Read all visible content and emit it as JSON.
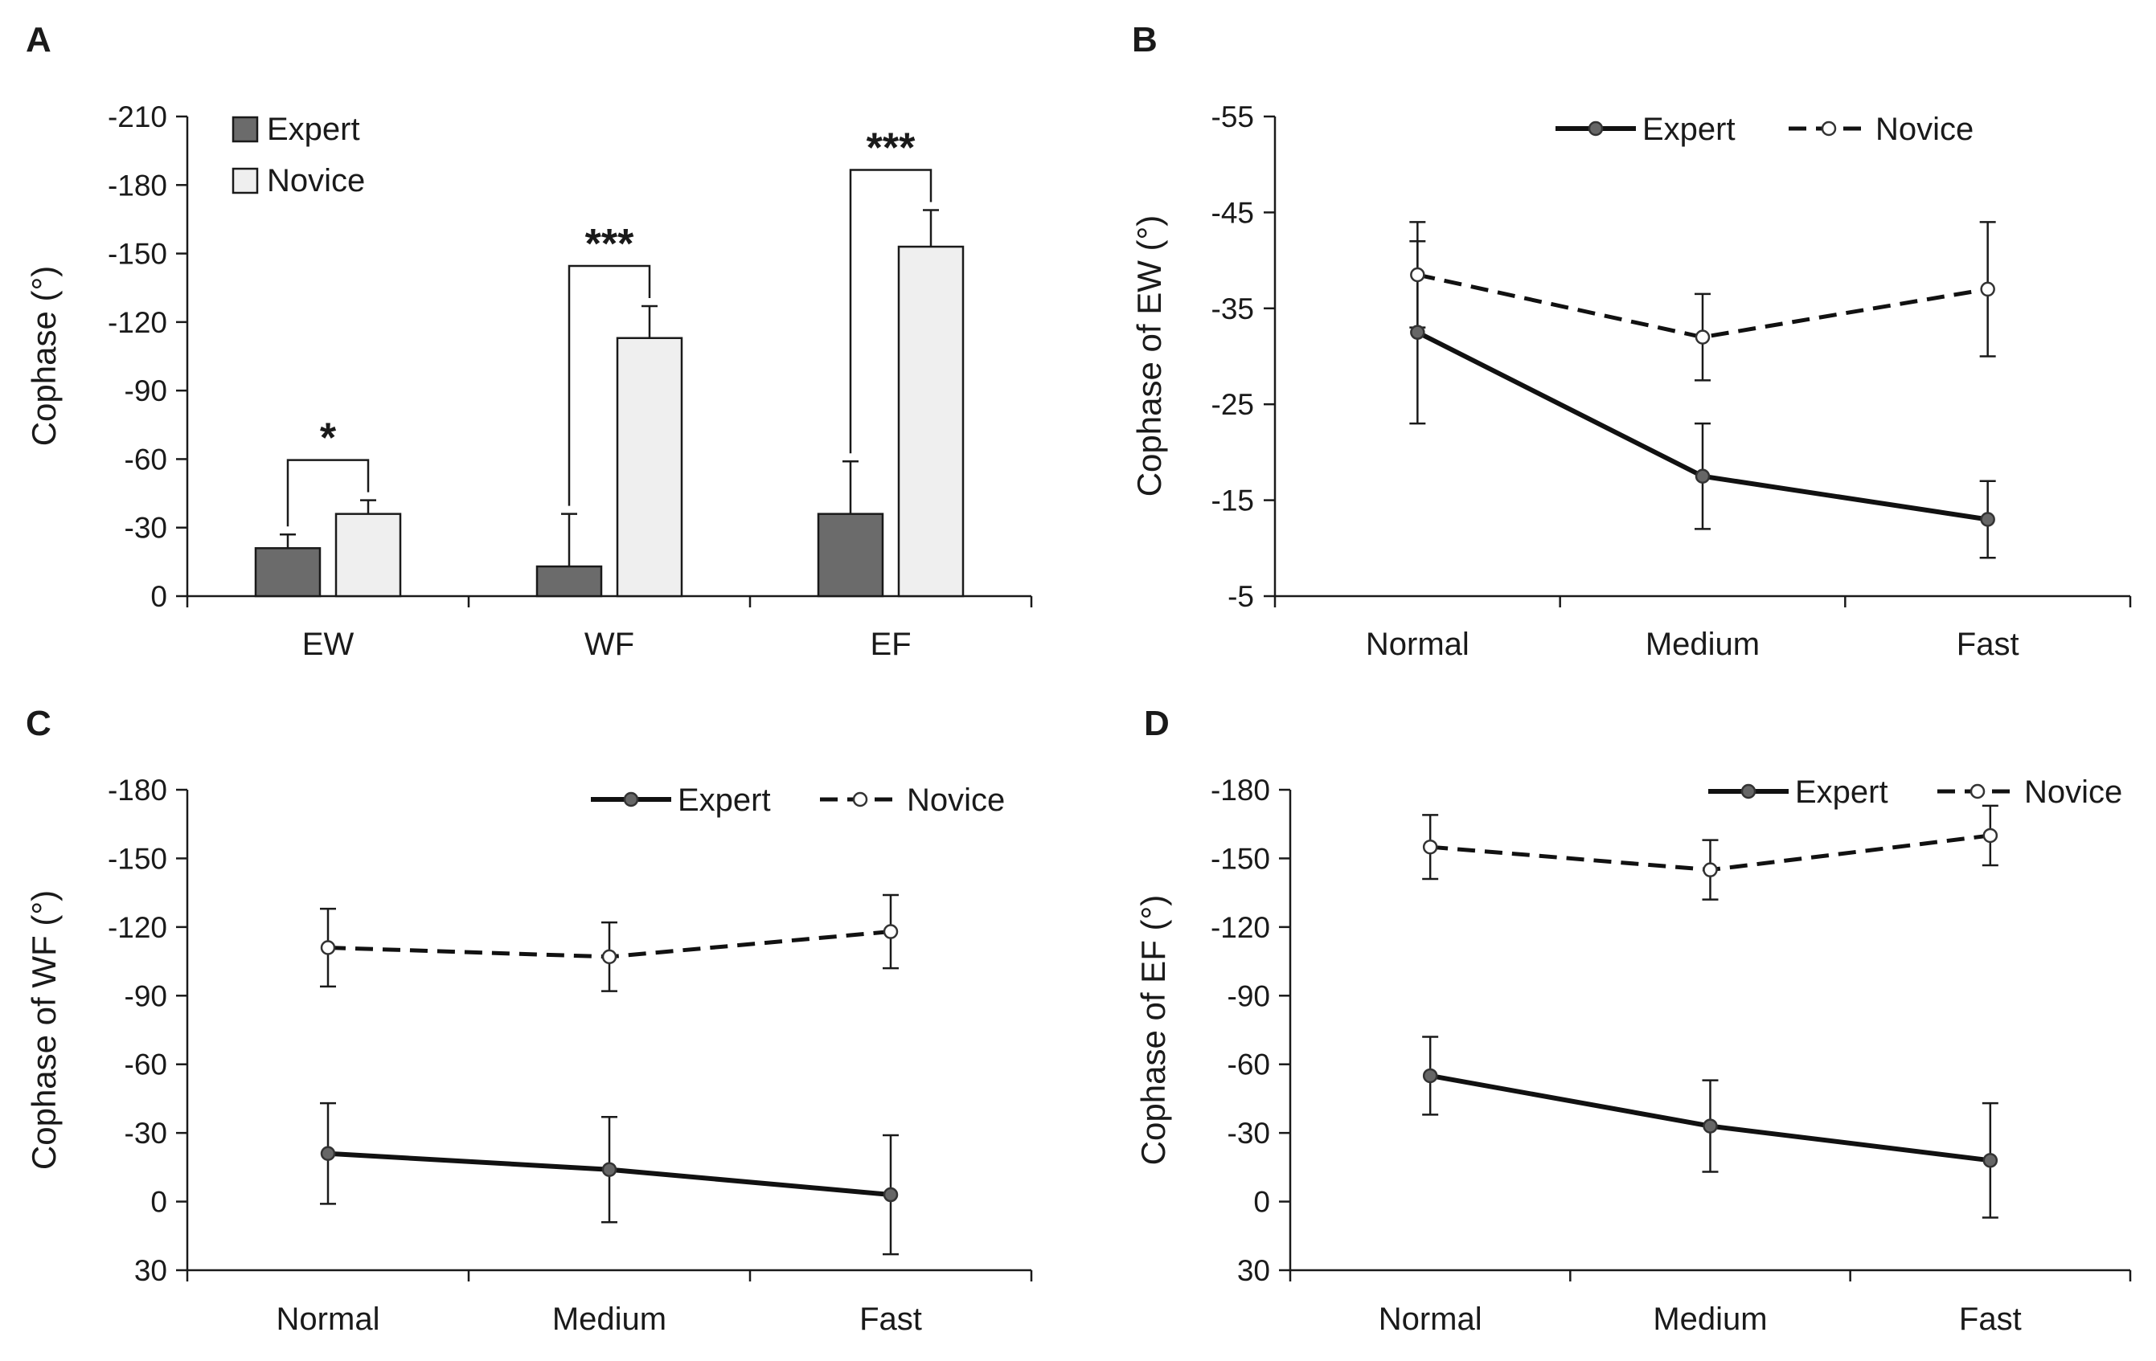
{
  "figure": {
    "background": "#ffffff",
    "axis_color": "#1a1a1a"
  },
  "chart_data": [
    {
      "id": "A",
      "panel_letter": "A",
      "type": "bar",
      "title": "",
      "xlabel": "",
      "ylabel": "Cophase (°)",
      "categories": [
        "EW",
        "WF",
        "EF"
      ],
      "ylim": [
        0,
        -210
      ],
      "yticks": [
        0,
        -30,
        -60,
        -90,
        -120,
        -150,
        -180,
        -210
      ],
      "ytick_labels": [
        "0",
        "-30",
        "-60",
        "-90",
        "-120",
        "-150",
        "-180",
        "-210"
      ],
      "series": [
        {
          "name": "Expert",
          "color": "#6b6b6b",
          "values": [
            -21,
            -13,
            -36
          ],
          "errors": [
            6,
            23,
            23
          ]
        },
        {
          "name": "Novice",
          "color": "#efefef",
          "values": [
            -36,
            -113,
            -153
          ],
          "errors": [
            6,
            14,
            16
          ]
        }
      ],
      "significance": [
        {
          "category": "EW",
          "label": "*"
        },
        {
          "category": "WF",
          "label": "***"
        },
        {
          "category": "EF",
          "label": "***"
        }
      ],
      "legend_position": "top-left",
      "grid": false
    },
    {
      "id": "B",
      "panel_letter": "B",
      "type": "line",
      "title": "",
      "xlabel": "",
      "ylabel": "Cophase of EW (°)",
      "categories": [
        "Normal",
        "Medium",
        "Fast"
      ],
      "ylim": [
        -5,
        -55
      ],
      "yticks": [
        -5,
        -15,
        -25,
        -35,
        -45,
        -55
      ],
      "ytick_labels": [
        "-5",
        "-15",
        "-25",
        "-35",
        "-45",
        "-55"
      ],
      "series": [
        {
          "name": "Expert",
          "style": "solid",
          "marker_fill": "#666666",
          "values": [
            -32.5,
            -17.5,
            -13
          ],
          "errors": [
            9.5,
            5.5,
            4
          ]
        },
        {
          "name": "Novice",
          "style": "dashed",
          "marker_fill": "#ffffff",
          "values": [
            -38.5,
            -32,
            -37
          ],
          "errors": [
            5.5,
            4.5,
            7
          ]
        }
      ],
      "legend_position": "top-center",
      "grid": false
    },
    {
      "id": "C",
      "panel_letter": "C",
      "type": "line",
      "title": "",
      "xlabel": "",
      "ylabel": "Cophase of WF (°)",
      "categories": [
        "Normal",
        "Medium",
        "Fast"
      ],
      "ylim": [
        30,
        -180
      ],
      "yticks": [
        30,
        0,
        -30,
        -60,
        -90,
        -120,
        -150,
        -180
      ],
      "ytick_labels": [
        "30",
        "0",
        "-30",
        "-60",
        "-90",
        "-120",
        "-150",
        "-180"
      ],
      "series": [
        {
          "name": "Expert",
          "style": "solid",
          "marker_fill": "#666666",
          "values": [
            -21,
            -14,
            -3
          ],
          "errors": [
            22,
            23,
            26
          ]
        },
        {
          "name": "Novice",
          "style": "dashed",
          "marker_fill": "#ffffff",
          "values": [
            -111,
            -107,
            -118
          ],
          "errors": [
            17,
            15,
            16
          ]
        }
      ],
      "legend_position": "top-right",
      "grid": false
    },
    {
      "id": "D",
      "panel_letter": "D",
      "type": "line",
      "title": "",
      "xlabel": "",
      "ylabel": "Cophase  of EF (°)",
      "categories": [
        "Normal",
        "Medium",
        "Fast"
      ],
      "ylim": [
        30,
        -180
      ],
      "yticks": [
        30,
        0,
        -30,
        -60,
        -90,
        -120,
        -150,
        -180
      ],
      "ytick_labels": [
        "30",
        "0",
        "-30",
        "-60",
        "-90",
        "-120",
        "-150",
        "-180"
      ],
      "series": [
        {
          "name": "Expert",
          "style": "solid",
          "marker_fill": "#666666",
          "values": [
            -55,
            -33,
            -18
          ],
          "errors": [
            17,
            20,
            25
          ]
        },
        {
          "name": "Novice",
          "style": "dashed",
          "marker_fill": "#ffffff",
          "values": [
            -155,
            -145,
            -160
          ],
          "errors": [
            14,
            13,
            13
          ]
        }
      ],
      "legend_position": "top-right",
      "grid": false
    }
  ]
}
